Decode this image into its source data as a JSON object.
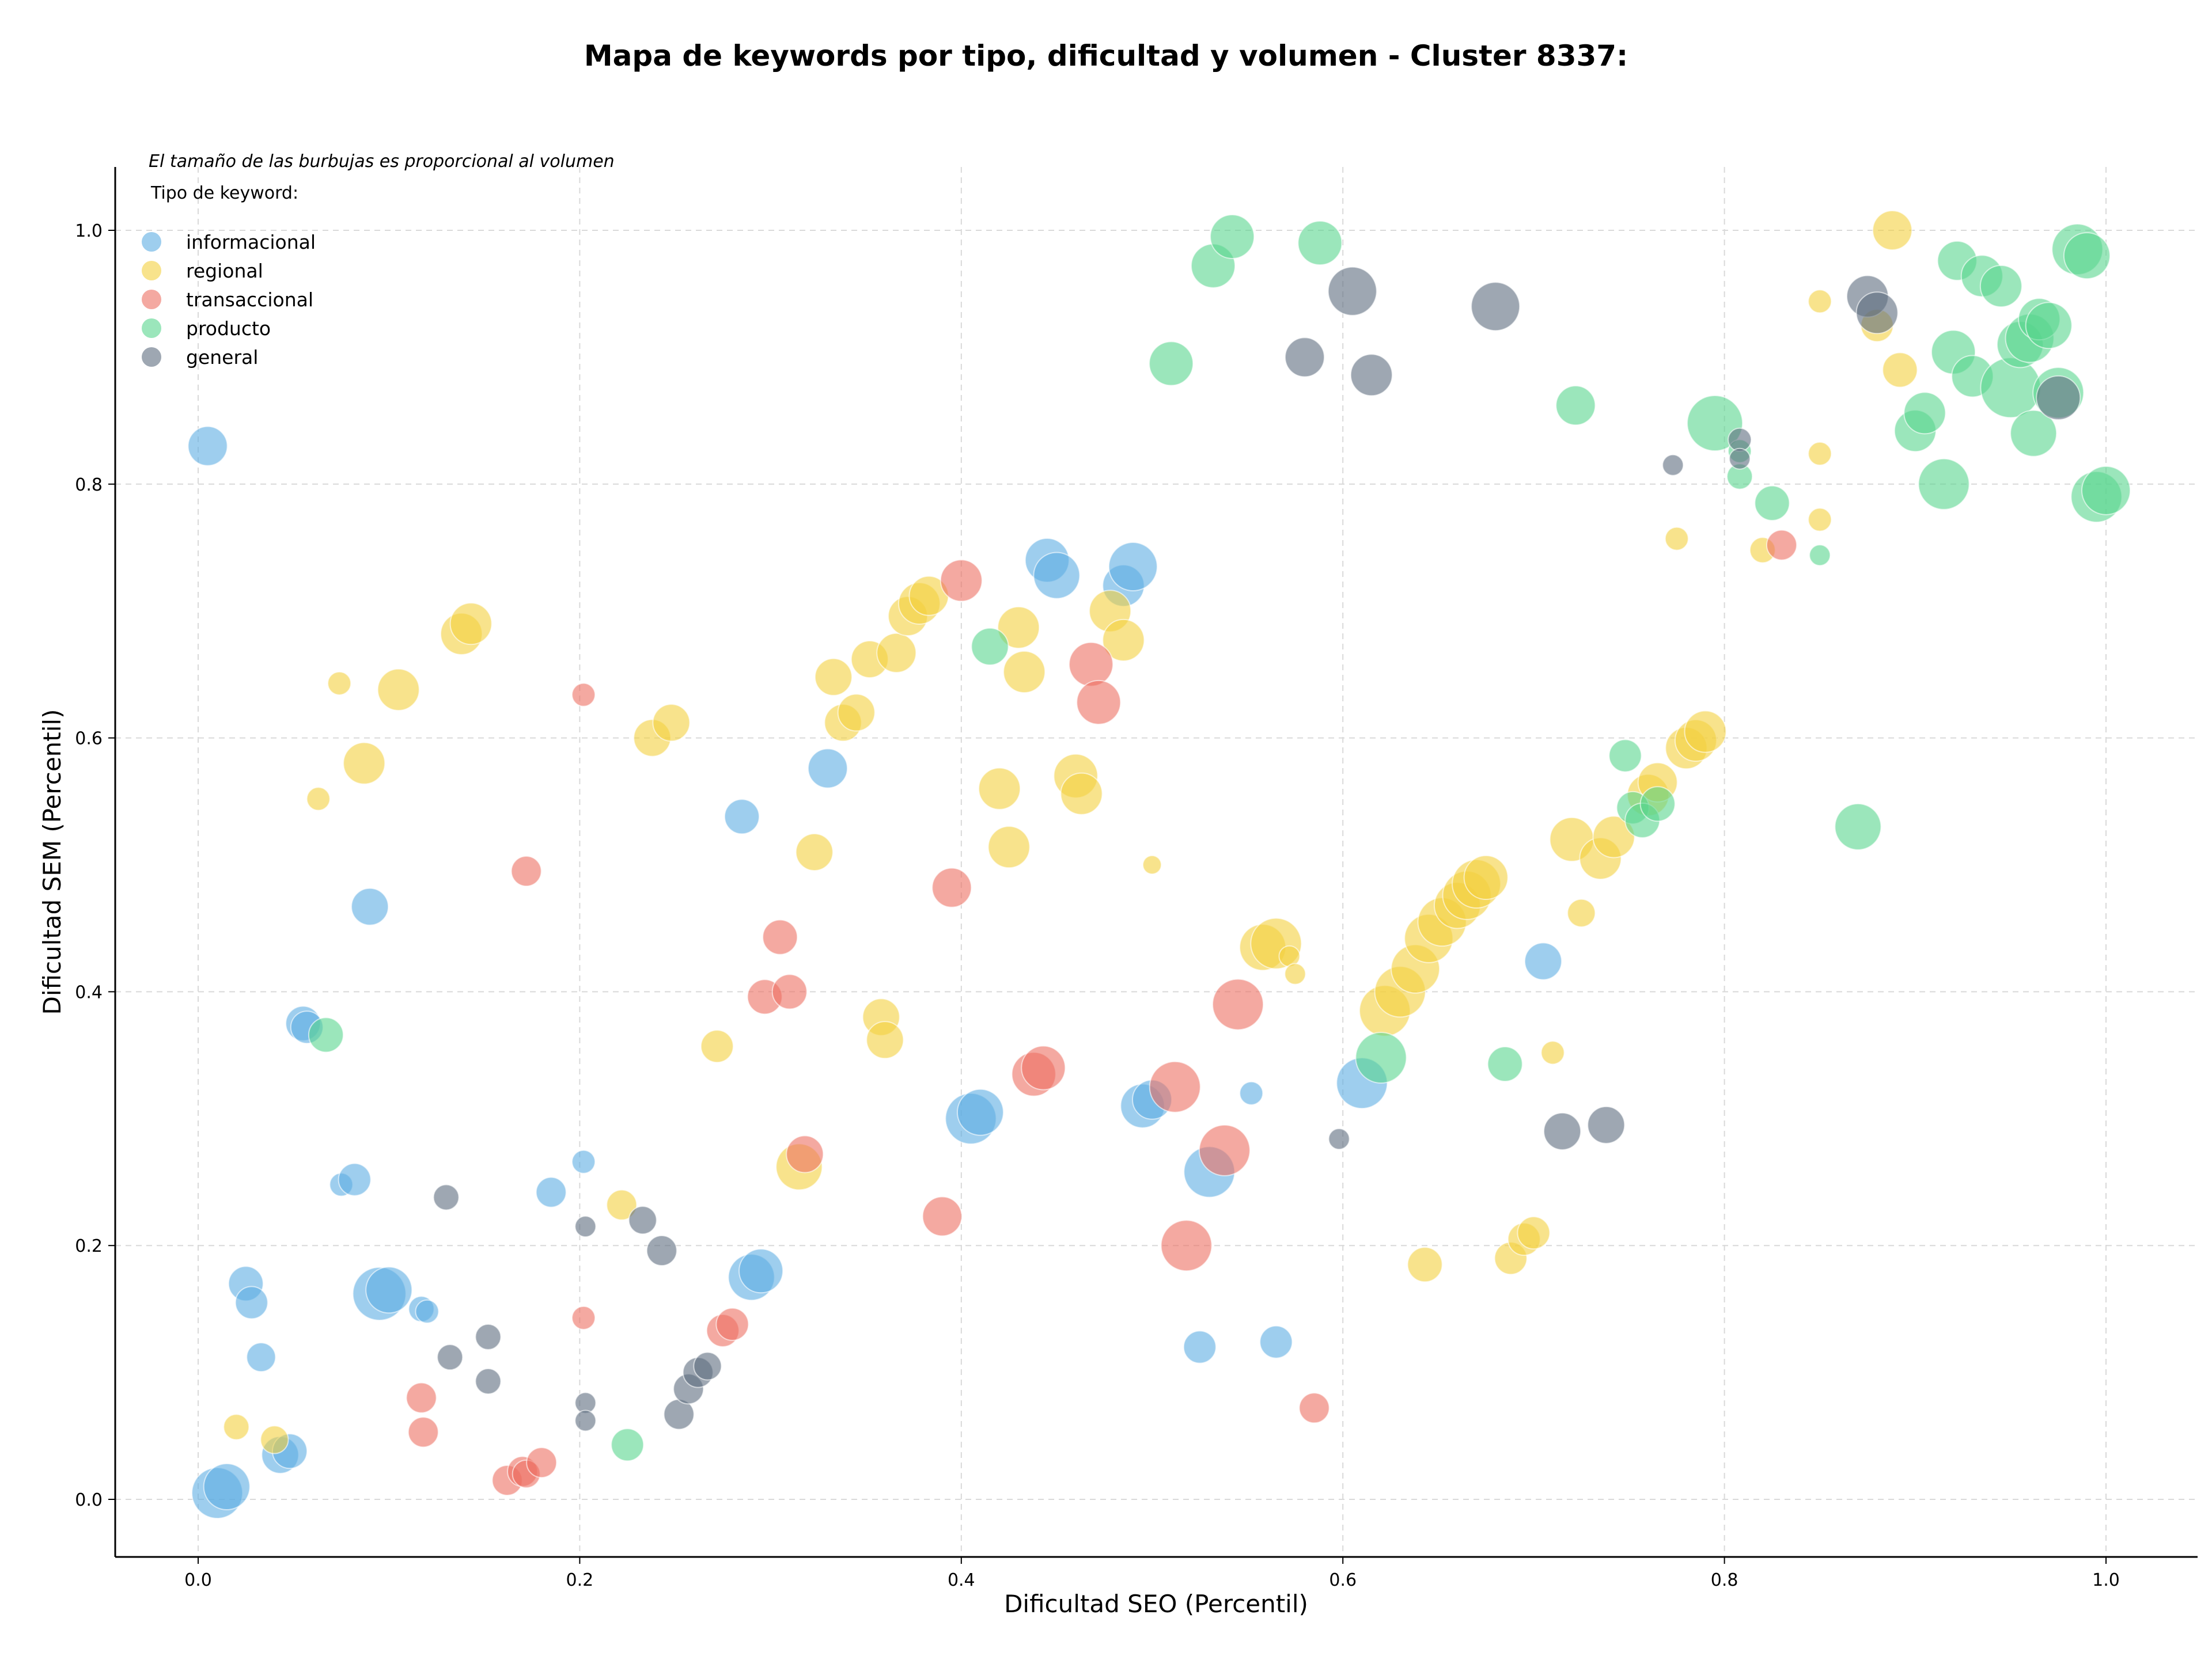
{
  "chart_data": {
    "type": "scatter",
    "title": "Mapa de keywords por tipo, dificultad y volumen - Cluster 8337:",
    "xlabel": "Dificultad SEO (Percentil)",
    "ylabel": "Dificultad SEM (Percentil)",
    "xlim": [
      -0.045,
      1.045
    ],
    "ylim": [
      -0.045,
      1.05
    ],
    "xticks": [
      "0.0",
      "0.2",
      "0.4",
      "0.6",
      "0.8",
      "1.0"
    ],
    "yticks": [
      "0.0",
      "0.2",
      "0.4",
      "0.6",
      "0.8",
      "1.0"
    ],
    "grid": true,
    "size_note": "El tamaño de las burbujas es proporcional al volumen",
    "legend_title": "Tipo de keyword:",
    "legend_position": "top-left",
    "series": [
      {
        "name": "informacional",
        "color": "#5dade2",
        "points": [
          [
            0.005,
            0.83,
            34
          ],
          [
            0.01,
            0.005,
            44
          ],
          [
            0.015,
            0.01,
            40
          ],
          [
            0.025,
            0.17,
            30
          ],
          [
            0.028,
            0.155,
            28
          ],
          [
            0.033,
            0.112,
            25
          ],
          [
            0.043,
            0.035,
            32
          ],
          [
            0.048,
            0.038,
            30
          ],
          [
            0.055,
            0.375,
            30
          ],
          [
            0.057,
            0.372,
            28
          ],
          [
            0.075,
            0.248,
            20
          ],
          [
            0.082,
            0.252,
            28
          ],
          [
            0.09,
            0.467,
            32
          ],
          [
            0.095,
            0.162,
            46
          ],
          [
            0.1,
            0.165,
            40
          ],
          [
            0.117,
            0.15,
            22
          ],
          [
            0.12,
            0.148,
            20
          ],
          [
            0.185,
            0.242,
            26
          ],
          [
            0.202,
            0.266,
            20
          ],
          [
            0.285,
            0.538,
            30
          ],
          [
            0.29,
            0.175,
            40
          ],
          [
            0.295,
            0.18,
            38
          ],
          [
            0.33,
            0.576,
            34
          ],
          [
            0.405,
            0.3,
            44
          ],
          [
            0.41,
            0.305,
            40
          ],
          [
            0.445,
            0.74,
            38
          ],
          [
            0.45,
            0.728,
            40
          ],
          [
            0.485,
            0.72,
            36
          ],
          [
            0.49,
            0.735,
            42
          ],
          [
            0.495,
            0.31,
            38
          ],
          [
            0.5,
            0.315,
            34
          ],
          [
            0.525,
            0.12,
            28
          ],
          [
            0.53,
            0.258,
            44
          ],
          [
            0.552,
            0.32,
            20
          ],
          [
            0.565,
            0.124,
            28
          ],
          [
            0.61,
            0.328,
            44
          ],
          [
            0.705,
            0.424,
            32
          ]
        ]
      },
      {
        "name": "regional",
        "color": "#f4d03f",
        "points": [
          [
            0.02,
            0.057,
            22
          ],
          [
            0.04,
            0.047,
            24
          ],
          [
            0.063,
            0.552,
            20
          ],
          [
            0.074,
            0.643,
            20
          ],
          [
            0.087,
            0.58,
            36
          ],
          [
            0.105,
            0.638,
            36
          ],
          [
            0.138,
            0.682,
            36
          ],
          [
            0.143,
            0.69,
            36
          ],
          [
            0.238,
            0.6,
            32
          ],
          [
            0.248,
            0.612,
            32
          ],
          [
            0.222,
            0.232,
            26
          ],
          [
            0.272,
            0.357,
            28
          ],
          [
            0.315,
            0.262,
            40
          ],
          [
            0.323,
            0.51,
            32
          ],
          [
            0.333,
            0.648,
            32
          ],
          [
            0.338,
            0.612,
            32
          ],
          [
            0.345,
            0.62,
            32
          ],
          [
            0.352,
            0.662,
            32
          ],
          [
            0.358,
            0.38,
            32
          ],
          [
            0.36,
            0.362,
            32
          ],
          [
            0.366,
            0.667,
            34
          ],
          [
            0.372,
            0.696,
            34
          ],
          [
            0.378,
            0.706,
            36
          ],
          [
            0.383,
            0.712,
            34
          ],
          [
            0.42,
            0.56,
            36
          ],
          [
            0.425,
            0.514,
            36
          ],
          [
            0.43,
            0.687,
            36
          ],
          [
            0.433,
            0.652,
            36
          ],
          [
            0.46,
            0.57,
            38
          ],
          [
            0.463,
            0.556,
            36
          ],
          [
            0.478,
            0.7,
            36
          ],
          [
            0.485,
            0.677,
            36
          ],
          [
            0.5,
            0.5,
            16
          ],
          [
            0.558,
            0.435,
            40
          ],
          [
            0.565,
            0.438,
            44
          ],
          [
            0.572,
            0.428,
            18
          ],
          [
            0.575,
            0.414,
            18
          ],
          [
            0.622,
            0.385,
            44
          ],
          [
            0.63,
            0.4,
            44
          ],
          [
            0.638,
            0.418,
            42
          ],
          [
            0.645,
            0.442,
            42
          ],
          [
            0.652,
            0.455,
            42
          ],
          [
            0.66,
            0.468,
            40
          ],
          [
            0.665,
            0.476,
            42
          ],
          [
            0.67,
            0.485,
            42
          ],
          [
            0.675,
            0.49,
            38
          ],
          [
            0.643,
            0.185,
            30
          ],
          [
            0.688,
            0.19,
            28
          ],
          [
            0.695,
            0.205,
            28
          ],
          [
            0.7,
            0.21,
            28
          ],
          [
            0.71,
            0.352,
            20
          ],
          [
            0.72,
            0.52,
            38
          ],
          [
            0.725,
            0.462,
            24
          ],
          [
            0.735,
            0.505,
            36
          ],
          [
            0.742,
            0.522,
            36
          ],
          [
            0.76,
            0.555,
            36
          ],
          [
            0.765,
            0.565,
            34
          ],
          [
            0.78,
            0.592,
            36
          ],
          [
            0.785,
            0.598,
            36
          ],
          [
            0.79,
            0.605,
            36
          ],
          [
            0.775,
            0.757,
            20
          ],
          [
            0.82,
            0.748,
            22
          ],
          [
            0.85,
            0.944,
            20
          ],
          [
            0.85,
            0.824,
            20
          ],
          [
            0.85,
            0.772,
            20
          ],
          [
            0.888,
            1.0,
            34
          ],
          [
            0.892,
            0.89,
            30
          ],
          [
            0.88,
            0.925,
            28
          ]
        ]
      },
      {
        "name": "transaccional",
        "color": "#ec7063",
        "points": [
          [
            0.117,
            0.08,
            26
          ],
          [
            0.118,
            0.053,
            26
          ],
          [
            0.162,
            0.015,
            26
          ],
          [
            0.17,
            0.022,
            26
          ],
          [
            0.172,
            0.02,
            24
          ],
          [
            0.18,
            0.029,
            26
          ],
          [
            0.172,
            0.495,
            26
          ],
          [
            0.202,
            0.634,
            20
          ],
          [
            0.202,
            0.143,
            20
          ],
          [
            0.275,
            0.133,
            28
          ],
          [
            0.28,
            0.138,
            28
          ],
          [
            0.297,
            0.396,
            30
          ],
          [
            0.305,
            0.443,
            30
          ],
          [
            0.31,
            0.4,
            30
          ],
          [
            0.318,
            0.272,
            32
          ],
          [
            0.39,
            0.223,
            34
          ],
          [
            0.395,
            0.482,
            34
          ],
          [
            0.4,
            0.724,
            36
          ],
          [
            0.438,
            0.335,
            38
          ],
          [
            0.443,
            0.34,
            38
          ],
          [
            0.468,
            0.658,
            38
          ],
          [
            0.472,
            0.628,
            38
          ],
          [
            0.512,
            0.325,
            44
          ],
          [
            0.518,
            0.2,
            44
          ],
          [
            0.538,
            0.275,
            44
          ],
          [
            0.545,
            0.39,
            44
          ],
          [
            0.585,
            0.072,
            26
          ],
          [
            0.83,
            0.752,
            26
          ]
        ]
      },
      {
        "name": "producto",
        "color": "#58d68d",
        "points": [
          [
            0.067,
            0.366,
            30
          ],
          [
            0.225,
            0.043,
            28
          ],
          [
            0.415,
            0.672,
            32
          ],
          [
            0.51,
            0.895,
            38
          ],
          [
            0.532,
            0.972,
            38
          ],
          [
            0.542,
            0.995,
            38
          ],
          [
            0.588,
            0.99,
            38
          ],
          [
            0.62,
            0.348,
            44
          ],
          [
            0.685,
            0.343,
            30
          ],
          [
            0.722,
            0.862,
            34
          ],
          [
            0.748,
            0.586,
            28
          ],
          [
            0.752,
            0.545,
            28
          ],
          [
            0.757,
            0.535,
            30
          ],
          [
            0.765,
            0.548,
            30
          ],
          [
            0.795,
            0.848,
            48
          ],
          [
            0.808,
            0.806,
            22
          ],
          [
            0.808,
            0.826,
            20
          ],
          [
            0.825,
            0.785,
            30
          ],
          [
            0.85,
            0.744,
            18
          ],
          [
            0.87,
            0.53,
            40
          ],
          [
            0.9,
            0.842,
            36
          ],
          [
            0.905,
            0.856,
            36
          ],
          [
            0.915,
            0.8,
            44
          ],
          [
            0.92,
            0.904,
            38
          ],
          [
            0.922,
            0.976,
            34
          ],
          [
            0.93,
            0.885,
            36
          ],
          [
            0.935,
            0.964,
            36
          ],
          [
            0.945,
            0.956,
            36
          ],
          [
            0.95,
            0.876,
            52
          ],
          [
            0.955,
            0.91,
            40
          ],
          [
            0.96,
            0.915,
            42
          ],
          [
            0.962,
            0.84,
            40
          ],
          [
            0.965,
            0.93,
            36
          ],
          [
            0.97,
            0.925,
            40
          ],
          [
            0.975,
            0.872,
            44
          ],
          [
            0.985,
            0.985,
            44
          ],
          [
            0.99,
            0.98,
            40
          ],
          [
            0.995,
            0.79,
            44
          ],
          [
            1.0,
            0.795,
            42
          ]
        ]
      },
      {
        "name": "general",
        "color": "#5d6d7e",
        "points": [
          [
            0.13,
            0.238,
            22
          ],
          [
            0.132,
            0.112,
            22
          ],
          [
            0.152,
            0.128,
            22
          ],
          [
            0.152,
            0.093,
            22
          ],
          [
            0.203,
            0.215,
            18
          ],
          [
            0.203,
            0.076,
            18
          ],
          [
            0.203,
            0.062,
            18
          ],
          [
            0.233,
            0.22,
            24
          ],
          [
            0.243,
            0.196,
            26
          ],
          [
            0.252,
            0.067,
            26
          ],
          [
            0.257,
            0.087,
            26
          ],
          [
            0.262,
            0.1,
            26
          ],
          [
            0.267,
            0.105,
            24
          ],
          [
            0.58,
            0.9,
            34
          ],
          [
            0.598,
            0.284,
            18
          ],
          [
            0.605,
            0.952,
            42
          ],
          [
            0.615,
            0.886,
            36
          ],
          [
            0.68,
            0.94,
            42
          ],
          [
            0.715,
            0.29,
            32
          ],
          [
            0.738,
            0.295,
            32
          ],
          [
            0.773,
            0.815,
            18
          ],
          [
            0.808,
            0.835,
            20
          ],
          [
            0.808,
            0.82,
            18
          ],
          [
            0.875,
            0.948,
            36
          ],
          [
            0.88,
            0.935,
            36
          ],
          [
            0.975,
            0.868,
            38
          ]
        ]
      }
    ]
  }
}
